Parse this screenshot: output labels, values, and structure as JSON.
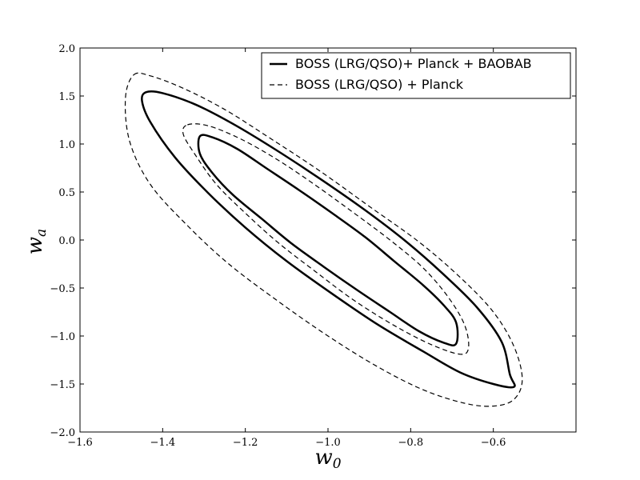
{
  "chart_data": {
    "type": "line",
    "title": "",
    "xlabel": "w",
    "xlabel_sub": "0",
    "ylabel": "w",
    "ylabel_sub": "a",
    "xlim": [
      -1.6,
      -0.4
    ],
    "ylim": [
      -2.0,
      2.0
    ],
    "xticks": [
      -1.6,
      -1.4,
      -1.2,
      -1.0,
      -0.8,
      -0.6
    ],
    "xtick_labels": [
      "−1.6",
      "−1.4",
      "−1.2",
      "−1.0",
      "−0.8",
      "−0.6"
    ],
    "yticks": [
      -2.0,
      -1.5,
      -1.0,
      -0.5,
      0.0,
      0.5,
      1.0,
      1.5,
      2.0
    ],
    "ytick_labels": [
      "−2.0",
      "−1.5",
      "−1.0",
      "−0.5",
      "0.0",
      "0.5",
      "1.0",
      "1.5",
      "2.0"
    ],
    "grid": false,
    "legend_position": "top-right",
    "series": [
      {
        "name": "BOSS (LRG/QSO)+ Planck + BAOBAB",
        "style": "solid",
        "color": "#000000",
        "contours": [
          {
            "level": "inner",
            "x": [
              -1.31,
              -1.28,
              -1.22,
              -1.15,
              -1.07,
              -0.99,
              -0.91,
              -0.84,
              -0.77,
              -0.72,
              -0.69,
              -0.69,
              -0.72,
              -0.78,
              -0.85,
              -0.93,
              -1.01,
              -1.09,
              -1.16,
              -1.23,
              -1.28,
              -1.31,
              -1.31
            ],
            "y": [
              1.08,
              1.07,
              0.95,
              0.75,
              0.52,
              0.28,
              0.03,
              -0.22,
              -0.47,
              -0.68,
              -0.86,
              -1.08,
              -1.07,
              -0.95,
              -0.75,
              -0.52,
              -0.28,
              -0.03,
              0.22,
              0.47,
              0.7,
              0.9,
              1.08
            ]
          },
          {
            "level": "outer",
            "x": [
              -1.44,
              -1.4,
              -1.32,
              -1.23,
              -1.13,
              -1.02,
              -0.91,
              -0.81,
              -0.72,
              -0.64,
              -0.58,
              -0.56,
              -0.55,
              -0.6,
              -0.68,
              -0.77,
              -0.88,
              -0.99,
              -1.1,
              -1.2,
              -1.29,
              -1.37,
              -1.43,
              -1.45,
              -1.44
            ],
            "y": [
              1.54,
              1.53,
              1.41,
              1.21,
              0.95,
              0.64,
              0.31,
              -0.02,
              -0.36,
              -0.7,
              -1.06,
              -1.4,
              -1.53,
              -1.5,
              -1.38,
              -1.16,
              -0.88,
              -0.56,
              -0.22,
              0.13,
              0.49,
              0.86,
              1.23,
              1.45,
              1.54
            ]
          }
        ]
      },
      {
        "name": "BOSS (LRG/QSO) + Planck",
        "style": "dashed",
        "color": "#000000",
        "contours": [
          {
            "level": "inner",
            "x": [
              -1.34,
              -1.29,
              -1.21,
              -1.12,
              -1.03,
              -0.94,
              -0.85,
              -0.77,
              -0.71,
              -0.67,
              -0.66,
              -0.68,
              -0.75,
              -0.84,
              -0.94,
              -1.03,
              -1.12,
              -1.2,
              -1.27,
              -1.32,
              -1.35,
              -1.34
            ],
            "y": [
              1.2,
              1.19,
              1.05,
              0.83,
              0.57,
              0.29,
              0.0,
              -0.29,
              -0.59,
              -0.88,
              -1.12,
              -1.19,
              -1.09,
              -0.89,
              -0.62,
              -0.33,
              -0.03,
              0.28,
              0.58,
              0.88,
              1.1,
              1.2
            ]
          },
          {
            "level": "outer",
            "x": [
              -1.47,
              -1.43,
              -1.35,
              -1.25,
              -1.14,
              -1.02,
              -0.9,
              -0.78,
              -0.68,
              -0.6,
              -0.55,
              -0.53,
              -0.55,
              -0.6,
              -0.67,
              -0.77,
              -0.88,
              -1.0,
              -1.12,
              -1.24,
              -1.34,
              -1.43,
              -1.48,
              -1.49,
              -1.47
            ],
            "y": [
              1.72,
              1.71,
              1.58,
              1.36,
              1.06,
              0.72,
              0.35,
              -0.02,
              -0.39,
              -0.75,
              -1.11,
              -1.45,
              -1.66,
              -1.73,
              -1.7,
              -1.56,
              -1.32,
              -1.0,
              -0.64,
              -0.25,
              0.15,
              0.58,
              1.03,
              1.48,
              1.72
            ]
          }
        ]
      }
    ]
  }
}
